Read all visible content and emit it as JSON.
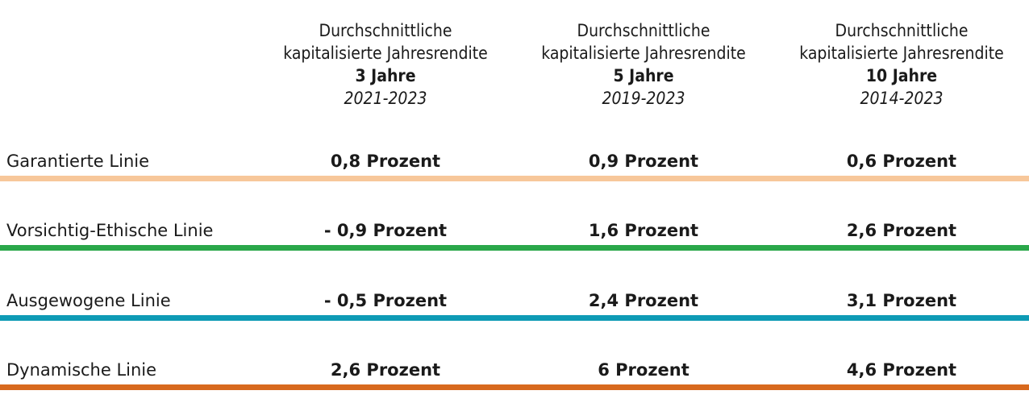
{
  "chart_data": {
    "type": "table",
    "columns": [
      {
        "line1": "Durchschnittliche",
        "line2": "kapitalisierte Jahresrendite",
        "period": "3 Jahre",
        "years": "2021-2023"
      },
      {
        "line1": "Durchschnittliche",
        "line2": "kapitalisierte Jahresrendite",
        "period": "5 Jahre",
        "years": "2019-2023"
      },
      {
        "line1": "Durchschnittliche",
        "line2": "kapitalisierte Jahresrendite",
        "period": "10 Jahre",
        "years": "2014-2023"
      }
    ],
    "rows": [
      {
        "label": "Garantierte Linie",
        "color": "#f7c79a",
        "values": [
          "0,8 Prozent",
          "0,9 Prozent",
          "0,6 Prozent"
        ]
      },
      {
        "label": "Vorsichtig-Ethische Linie",
        "color": "#2aa74a",
        "values": [
          "- 0,9 Prozent",
          "1,6 Prozent",
          "2,6 Prozent"
        ]
      },
      {
        "label": "Ausgewogene Linie",
        "color": "#0e9bb5",
        "values": [
          "- 0,5 Prozent",
          "2,4 Prozent",
          "3,1 Prozent"
        ]
      },
      {
        "label": "Dynamische Linie",
        "color": "#d8691e",
        "values": [
          "2,6 Prozent",
          "6 Prozent",
          "4,6 Prozent"
        ]
      }
    ]
  }
}
